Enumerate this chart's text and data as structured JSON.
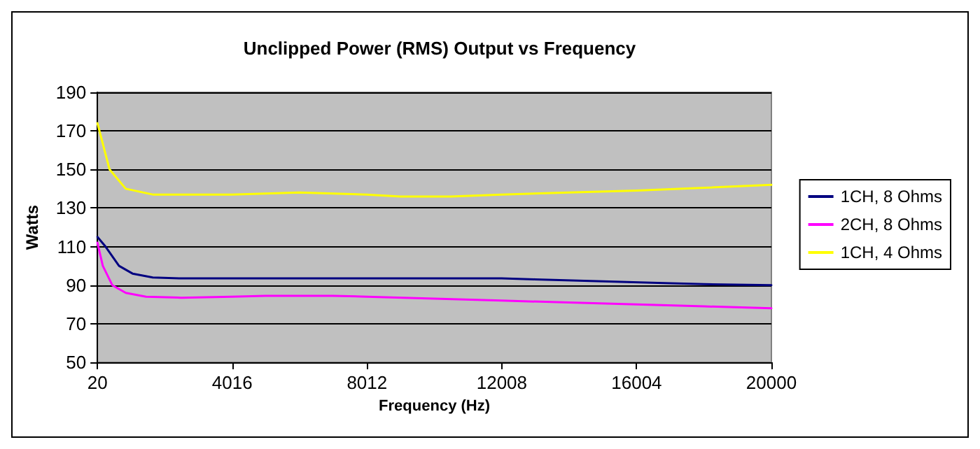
{
  "chart_data": {
    "type": "line",
    "title": "Unclipped Power (RMS) Output vs Frequency",
    "xlabel": "Frequency (Hz)",
    "ylabel": "Watts",
    "xlim": [
      20,
      20000
    ],
    "xticks": [
      20,
      4016,
      8012,
      12008,
      16004,
      20000
    ],
    "ylim": [
      50,
      190
    ],
    "yticks": [
      50,
      70,
      90,
      110,
      130,
      150,
      170,
      190
    ],
    "grid": "y",
    "legend": "right",
    "marker": "none",
    "line_style": "solid",
    "series": [
      {
        "name": "1CH, 8 Ohms",
        "color": "#000080",
        "x": [
          20,
          260,
          660,
          1060,
          1660,
          2500,
          6000,
          12000,
          13000,
          15000,
          17000,
          18000,
          20000
        ],
        "values": [
          115,
          110,
          100,
          96,
          94,
          93.5,
          93.5,
          93.5,
          93,
          92,
          91,
          90.5,
          90
        ]
      },
      {
        "name": "2CH, 8 Ohms",
        "color": "#ff00ff",
        "x": [
          20,
          180,
          460,
          860,
          1460,
          2500,
          4000,
          5000,
          7000,
          8000,
          10000,
          12000,
          14000,
          16000,
          18000,
          20000
        ],
        "values": [
          112,
          100,
          90,
          86,
          84,
          83.5,
          84,
          84.5,
          84.5,
          84,
          83,
          82,
          81,
          80,
          79,
          78
        ]
      },
      {
        "name": "1CH, 4 Ohms",
        "color": "#ffff00",
        "x": [
          20,
          380,
          860,
          1660,
          4000,
          6000,
          8000,
          9000,
          10500,
          12000,
          14000,
          16000,
          18000,
          20000
        ],
        "values": [
          174,
          150,
          140,
          137,
          137,
          138,
          137,
          136,
          136,
          137,
          138,
          139,
          140.5,
          142
        ]
      }
    ]
  }
}
